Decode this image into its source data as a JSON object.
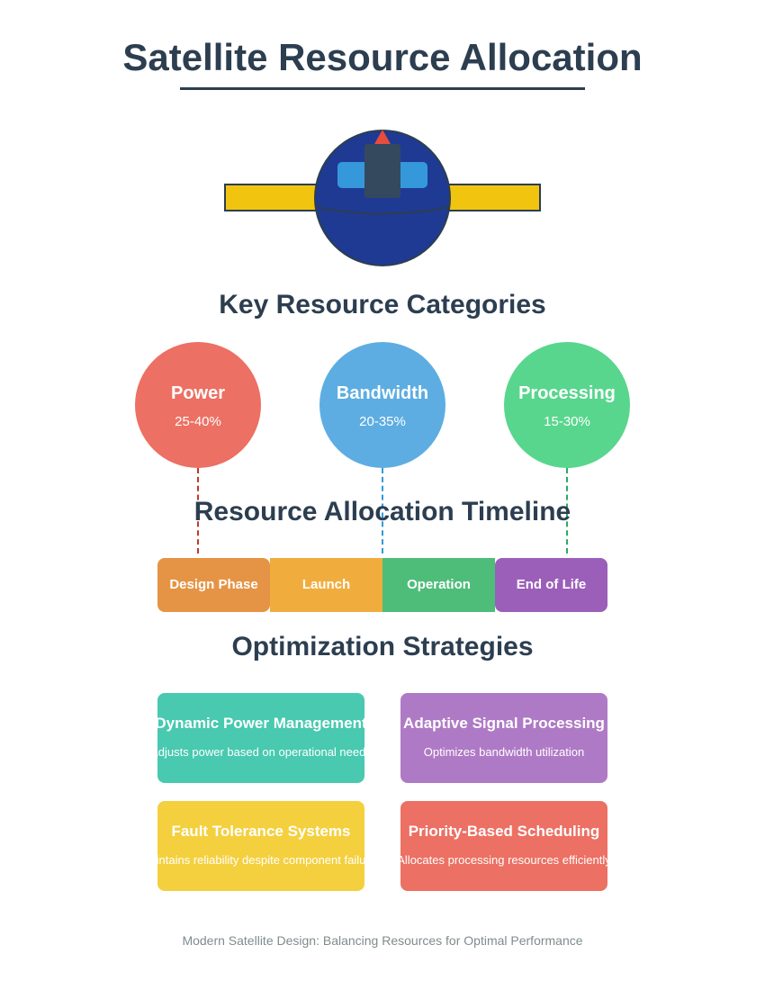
{
  "title": "Satellite Resource Allocation",
  "sections": {
    "categories": "Key Resource Categories",
    "timeline": "Resource Allocation Timeline",
    "strategies": "Optimization Strategies"
  },
  "categories": [
    {
      "name": "Power",
      "range": "25-40%",
      "color": "#ec7063"
    },
    {
      "name": "Bandwidth",
      "range": "20-35%",
      "color": "#5dade2"
    },
    {
      "name": "Processing",
      "range": "15-30%",
      "color": "#58d68d"
    }
  ],
  "timeline": [
    {
      "label": "Design Phase",
      "color": "#e59445"
    },
    {
      "label": "Launch",
      "color": "#f0ad3e"
    },
    {
      "label": "Operation",
      "color": "#4ebd7a"
    },
    {
      "label": "End of Life",
      "color": "#9b5fb9"
    }
  ],
  "strategies": [
    {
      "title": "Dynamic Power Management",
      "desc": "Adjusts power based on operational needs",
      "color": "#48c9b0"
    },
    {
      "title": "Adaptive Signal Processing",
      "desc": "Optimizes bandwidth utilization",
      "color": "#af7ac5"
    },
    {
      "title": "Fault Tolerance Systems",
      "desc": "Maintains reliability despite component failures",
      "color": "#f4d03f"
    },
    {
      "title": "Priority-Based Scheduling",
      "desc": "Allocates processing resources efficiently",
      "color": "#ec7063"
    }
  ],
  "footer": "Modern Satellite Design: Balancing Resources for Optimal Performance"
}
